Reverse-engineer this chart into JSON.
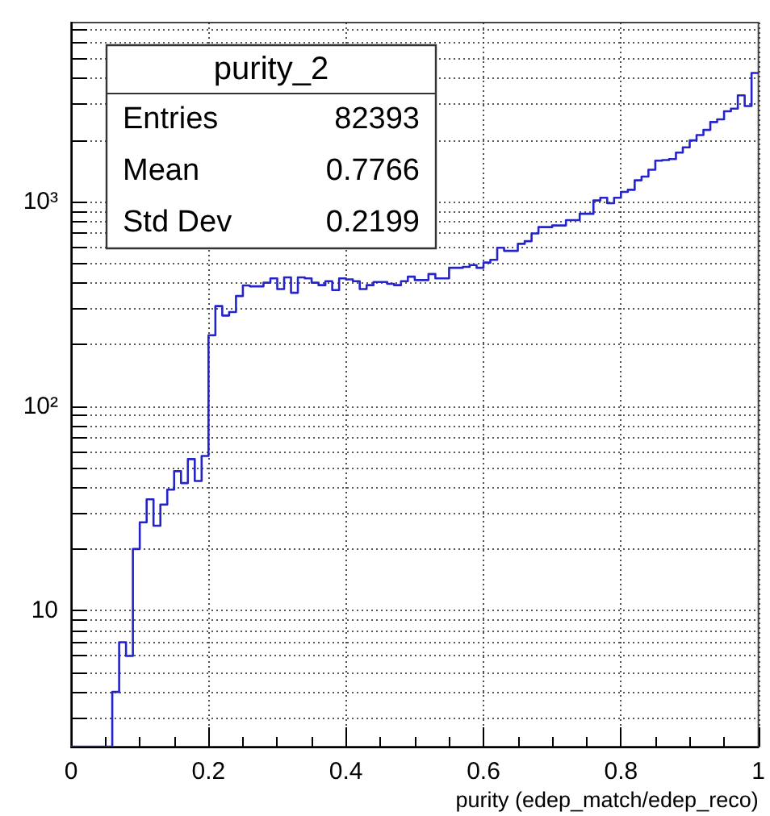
{
  "chart_data": {
    "type": "histogram",
    "title": "purity_2",
    "xlabel": "purity (edep_match/edep_reco)",
    "color": "#2424c8",
    "bins": [
      0,
      0.01,
      0.02,
      0.03,
      0.04,
      0.05,
      0.06,
      0.07,
      0.08,
      0.09,
      0.1,
      0.11,
      0.12,
      0.13,
      0.14,
      0.15,
      0.16,
      0.17,
      0.18,
      0.19,
      0.2,
      0.21,
      0.22,
      0.23,
      0.24,
      0.25,
      0.26,
      0.27,
      0.28,
      0.29,
      0.3,
      0.31,
      0.32,
      0.33,
      0.34,
      0.35,
      0.36,
      0.37,
      0.38,
      0.39,
      0.4,
      0.41,
      0.42,
      0.43,
      0.44,
      0.45,
      0.46,
      0.47,
      0.48,
      0.49,
      0.5,
      0.51,
      0.52,
      0.53,
      0.54,
      0.55,
      0.56,
      0.57,
      0.58,
      0.59,
      0.6,
      0.61,
      0.62,
      0.63,
      0.64,
      0.65,
      0.66,
      0.67,
      0.68,
      0.69,
      0.7,
      0.71,
      0.72,
      0.73,
      0.74,
      0.75,
      0.76,
      0.77,
      0.78,
      0.79,
      0.8,
      0.81,
      0.82,
      0.83,
      0.84,
      0.85,
      0.86,
      0.87,
      0.88,
      0.89,
      0.9,
      0.91,
      0.92,
      0.93,
      0.94,
      0.95,
      0.96,
      0.97,
      0.98,
      0.99,
      1
    ],
    "values": [
      null,
      null,
      null,
      null,
      null,
      null,
      4,
      7,
      6,
      20,
      27,
      35,
      26,
      33,
      39,
      48,
      42,
      55,
      43,
      57,
      222,
      308,
      277,
      288,
      345,
      389,
      385,
      385,
      401,
      421,
      373,
      426,
      358,
      426,
      421,
      401,
      390,
      408,
      369,
      421,
      416,
      408,
      373,
      390,
      404,
      404,
      396,
      390,
      408,
      429,
      413,
      413,
      442,
      421,
      421,
      474,
      474,
      479,
      489,
      474,
      503,
      519,
      594,
      574,
      574,
      621,
      640,
      698,
      750,
      750,
      764,
      764,
      811,
      811,
      871,
      871,
      1012,
      1043,
      982,
      1043,
      1114,
      1141,
      1270,
      1324,
      1431,
      1585,
      1595,
      1614,
      1734,
      1841,
      1990,
      2113,
      2240,
      2448,
      2524,
      2761,
      2847,
      3304,
      2931,
      4250
    ],
    "xlim": [
      0,
      1
    ],
    "xticks": [
      0,
      {
        "value": 0.2,
        "label": "0.2"
      },
      {
        "value": 0.4,
        "label": "0.4"
      },
      {
        "value": 0.6,
        "label": "0.6"
      },
      {
        "value": 0.8,
        "label": "0.8"
      },
      1
    ],
    "ylim": [
      2.16,
      7500
    ],
    "log": "y",
    "yticks": [
      {
        "value": 3,
        "label": null
      },
      {
        "value": 4,
        "label": null
      },
      {
        "value": 5,
        "label": null
      },
      {
        "value": 6,
        "label": null
      },
      {
        "value": 7,
        "label": null
      },
      {
        "value": 8,
        "label": null
      },
      {
        "value": 9,
        "label": null
      },
      10,
      {
        "value": 20,
        "label": null
      },
      {
        "value": 30,
        "label": null
      },
      {
        "value": 40,
        "label": null
      },
      {
        "value": 50,
        "label": null
      },
      {
        "value": 60,
        "label": null
      },
      {
        "value": 70,
        "label": null
      },
      {
        "value": 80,
        "label": null
      },
      {
        "value": 90,
        "label": null
      },
      {
        "value": 100,
        "label": "10²"
      },
      {
        "value": 200,
        "label": null
      },
      {
        "value": 300,
        "label": null
      },
      {
        "value": 400,
        "label": null
      },
      {
        "value": 500,
        "label": null
      },
      {
        "value": 600,
        "label": null
      },
      {
        "value": 700,
        "label": null
      },
      {
        "value": 800,
        "label": null
      },
      {
        "value": 900,
        "label": null
      },
      {
        "value": 1000,
        "label": "10³"
      },
      {
        "value": 2000,
        "label": null
      },
      {
        "value": 3000,
        "label": null
      },
      {
        "value": 4000,
        "label": null
      },
      {
        "value": 5000,
        "label": null
      },
      {
        "value": 6000,
        "label": null
      },
      {
        "value": 7000,
        "label": null
      }
    ],
    "grid": true,
    "annotations": [
      "Entries 82393",
      "Mean 0.7766",
      "Std Dev 0.2199"
    ]
  }
}
